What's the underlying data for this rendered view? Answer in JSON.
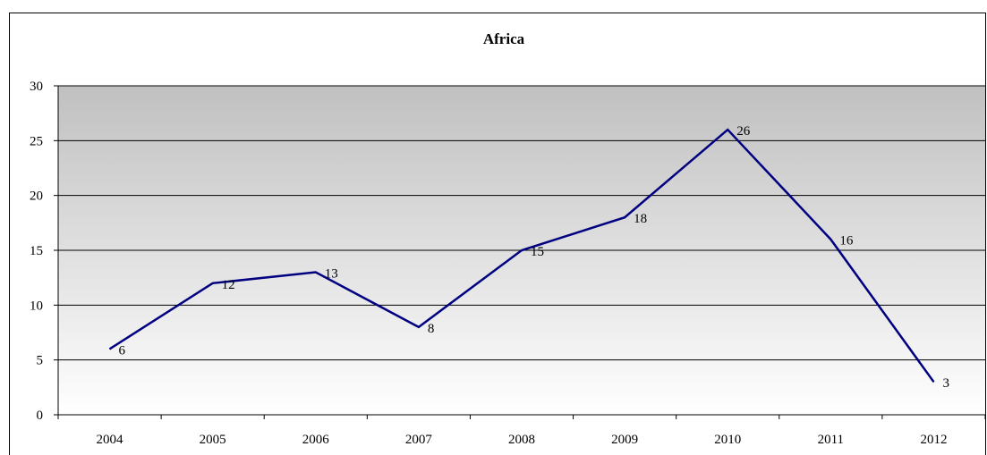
{
  "chart_data": {
    "type": "line",
    "title": "Africa",
    "xlabel": "",
    "ylabel": "",
    "categories": [
      "2004",
      "2005",
      "2006",
      "2007",
      "2008",
      "2009",
      "2010",
      "2011",
      "2012"
    ],
    "series": [
      {
        "values": [
          6,
          12,
          13,
          8,
          15,
          18,
          26,
          16,
          3
        ]
      }
    ],
    "ylim": [
      0,
      30
    ],
    "yticks": [
      "0",
      "5",
      "10",
      "15",
      "20",
      "25",
      "30"
    ],
    "grid": true,
    "legend": "none",
    "colors": {
      "line": "#000080",
      "plot_bg_top": "#c0c0c0",
      "plot_bg_bottom": "#ffffff",
      "gridline": "#000000"
    }
  }
}
